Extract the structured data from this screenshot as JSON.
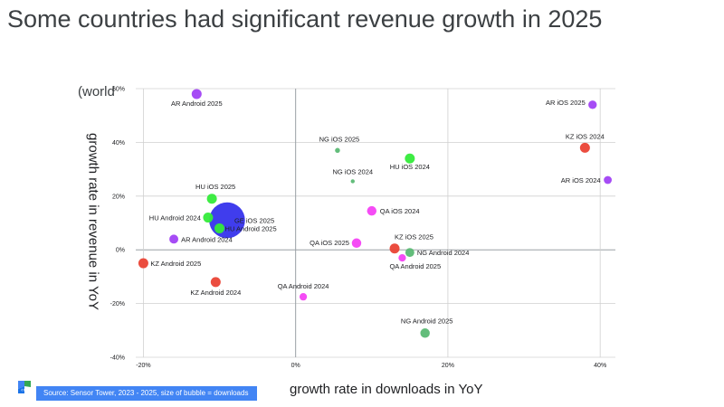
{
  "slide": {
    "title": "Some countries had significant revenue growth in 2025",
    "left_note": "(world",
    "source": "Source: Sensor Tower, 2023 - 2025, size of bubble = downloads"
  },
  "chart_data": {
    "type": "scatter",
    "xlabel": "growth rate in downloads in YoY",
    "ylabel": "growth rate in revenue in YoY",
    "xlim": [
      -21,
      42
    ],
    "ylim": [
      -40,
      60
    ],
    "xticks": [
      -20,
      0,
      20,
      40
    ],
    "xtick_labels": [
      "-20%",
      "0%",
      "20%",
      "40%"
    ],
    "yticks": [
      -40,
      -20,
      0,
      20,
      40,
      60
    ],
    "ytick_labels": [
      "-40%",
      "-20%",
      "0%",
      "20%",
      "40%",
      "60%"
    ],
    "grid": true,
    "points": [
      {
        "label": "AR Android 2025",
        "x": -13,
        "y": 58,
        "size": 1.0,
        "color": "#a142f4"
      },
      {
        "label": "AR iOS 2025",
        "x": 39,
        "y": 54,
        "size": 0.85,
        "color": "#a142f4"
      },
      {
        "label": "KZ iOS 2024",
        "x": 38,
        "y": 38,
        "size": 1.0,
        "color": "#ea4335"
      },
      {
        "label": "AR iOS 2024",
        "x": 41,
        "y": 26,
        "size": 0.8,
        "color": "#a142f4"
      },
      {
        "label": "NG iOS 2025",
        "x": 5.5,
        "y": 37,
        "size": 0.5,
        "color": "#5bb974"
      },
      {
        "label": "HU iOS 2024",
        "x": 15,
        "y": 34,
        "size": 1.0,
        "color": "#34eb3a"
      },
      {
        "label": "NG iOS 2024",
        "x": 7.5,
        "y": 25.5,
        "size": 0.4,
        "color": "#5bb974"
      },
      {
        "label": "HU iOS 2025",
        "x": -11,
        "y": 19,
        "size": 1.0,
        "color": "#34eb3a"
      },
      {
        "label": "QA iOS 2024",
        "x": 10,
        "y": 14.5,
        "size": 0.95,
        "color": "#f442f4"
      },
      {
        "label": "HU Android 2024",
        "x": -11.5,
        "y": 12,
        "size": 1.0,
        "color": "#34eb3a"
      },
      {
        "label": "GE iOS 2025",
        "x": -9,
        "y": 11,
        "size": 3.6,
        "color": "#3633ec"
      },
      {
        "label": "HU Android 2025",
        "x": -10,
        "y": 8,
        "size": 1.0,
        "color": "#34eb3a"
      },
      {
        "label": "AR Android 2024",
        "x": -16,
        "y": 4,
        "size": 0.9,
        "color": "#a142f4"
      },
      {
        "label": "QA iOS 2025",
        "x": 8,
        "y": 2.5,
        "size": 0.95,
        "color": "#f442f4"
      },
      {
        "label": "KZ iOS 2025",
        "x": 13,
        "y": 0.5,
        "size": 1.0,
        "color": "#ea4335"
      },
      {
        "label": "NG Android 2024",
        "x": 15,
        "y": -1,
        "size": 0.9,
        "color": "#5bb974"
      },
      {
        "label": "QA Android 2025",
        "x": 14,
        "y": -3,
        "size": 0.75,
        "color": "#f442f4"
      },
      {
        "label": "KZ Android 2025",
        "x": -20,
        "y": -5,
        "size": 1.0,
        "color": "#ea4335"
      },
      {
        "label": "KZ Android 2024",
        "x": -10.5,
        "y": -12,
        "size": 1.0,
        "color": "#ea4335"
      },
      {
        "label": "QA Android 2024",
        "x": 1,
        "y": -17.5,
        "size": 0.75,
        "color": "#f442f4"
      },
      {
        "label": "NG Android 2025",
        "x": 17,
        "y": -31,
        "size": 0.95,
        "color": "#5bb974"
      }
    ]
  }
}
